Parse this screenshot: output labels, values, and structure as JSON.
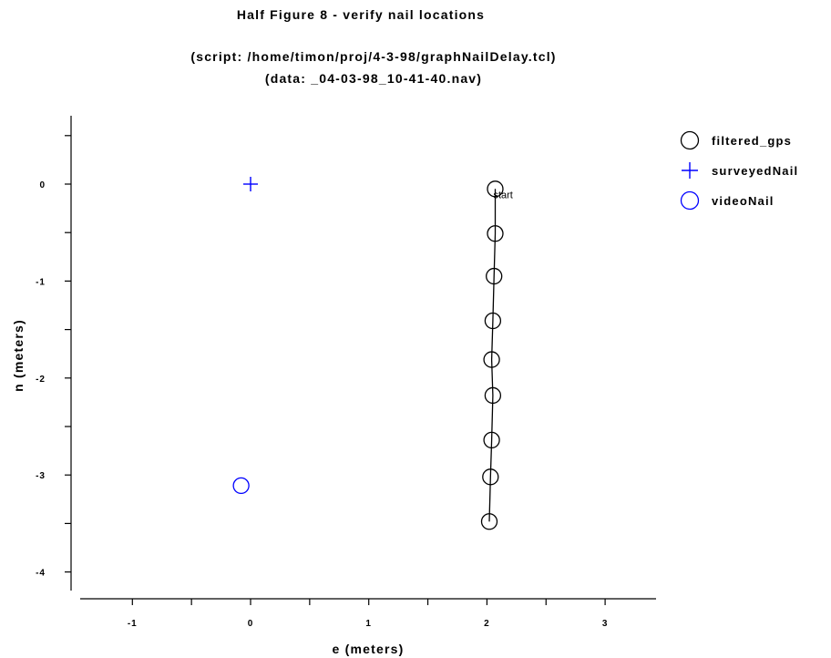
{
  "chart_data": {
    "type": "scatter",
    "title": "Half Figure 8 - verify nail locations",
    "subtitle_lines": [
      "(script: /home/timon/proj/4-3-98/graphNailDelay.tcl)",
      "(data: _04-03-98_10-41-40.nav)"
    ],
    "xlabel": "e (meters)",
    "ylabel": "n (meters)",
    "xlim": [
      -1.45,
      3.45
    ],
    "ylim": [
      -4.2,
      0.7
    ],
    "x_ticks": [
      -1,
      0,
      1,
      2,
      3
    ],
    "x_tick_labels": [
      "-1",
      "0",
      "1",
      "2",
      "3"
    ],
    "x_minor_ticks": [
      -0.5,
      0.5,
      1.5,
      2.5
    ],
    "y_ticks": [
      0,
      -1,
      -2,
      -3,
      -4
    ],
    "y_tick_labels": [
      "0",
      "-1",
      "-2",
      "-3",
      "-4"
    ],
    "y_minor_ticks": [
      0.5,
      -0.5,
      -1.5,
      -2.5,
      -3.5
    ],
    "grid": false,
    "legend_position": "right",
    "series": [
      {
        "name": "filtered_gps",
        "marker": "circle",
        "connected": true,
        "color": "#000000",
        "points": [
          {
            "x": 2.07,
            "y": -0.05
          },
          {
            "x": 2.07,
            "y": -0.51
          },
          {
            "x": 2.06,
            "y": -0.95
          },
          {
            "x": 2.05,
            "y": -1.41
          },
          {
            "x": 2.04,
            "y": -1.81
          },
          {
            "x": 2.05,
            "y": -2.18
          },
          {
            "x": 2.04,
            "y": -2.64
          },
          {
            "x": 2.03,
            "y": -3.02
          },
          {
            "x": 2.02,
            "y": -3.48
          }
        ]
      },
      {
        "name": "surveyedNail",
        "marker": "plus",
        "connected": false,
        "color": "#0000ff",
        "points": [
          {
            "x": 0.0,
            "y": 0.0
          }
        ]
      },
      {
        "name": "videoNail",
        "marker": "circle",
        "connected": false,
        "color": "#0000ff",
        "points": [
          {
            "x": -0.08,
            "y": -3.11
          }
        ]
      }
    ],
    "annotations": [
      {
        "text": "start",
        "x": 2.07,
        "y": -0.05
      }
    ]
  }
}
